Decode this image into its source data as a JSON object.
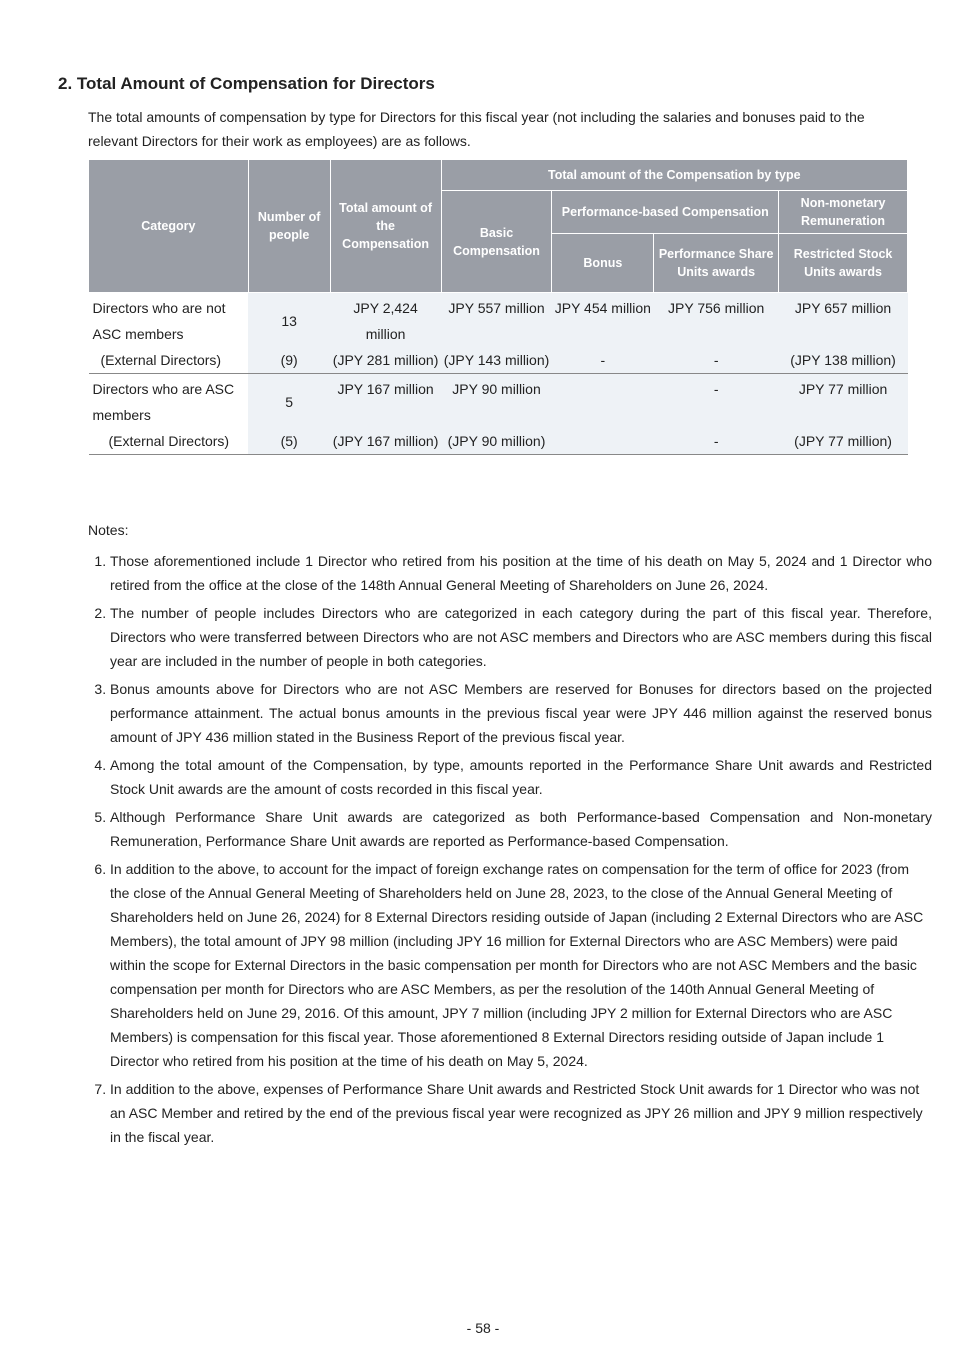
{
  "title": "2. Total Amount of Compensation for Directors",
  "intro": "The total amounts of compensation by type for Directors for this fiscal year (not including the salaries and bonuses paid to the relevant Directors for their work as employees) are as follows.",
  "table": {
    "headers": {
      "category": "Category",
      "people": "Number of people",
      "total": "Total amount of the Compensation",
      "by_type": "Total amount of the Compensation by type",
      "basic": "Basic Compensation",
      "perf": "Performance-based Compensation",
      "nonmon": "Non-monetary Remuneration",
      "bonus": "Bonus",
      "psu": "Performance Share Units awards",
      "rsu": "Restricted Stock Units awards"
    },
    "rows": [
      {
        "cat": "Directors who are not ASC members",
        "people": "13",
        "total": "JPY 2,424 million",
        "basic": "JPY 557 million",
        "bonus": "JPY 454 million",
        "psu": "JPY 756 million",
        "rsu": "JPY 657 million"
      },
      {
        "cat": "(External Directors)",
        "people": "(9)",
        "total": "(JPY 281 million)",
        "basic": "(JPY 143 million)",
        "bonus": "-",
        "psu": "-",
        "rsu": "(JPY 138 million)"
      },
      {
        "cat": "Directors who are ASC members",
        "people": "5",
        "total": "JPY 167 million",
        "basic": "JPY 90 million",
        "bonus": "",
        "psu": "-",
        "rsu": "JPY 77 million"
      },
      {
        "cat": "(External Directors)",
        "people": "(5)",
        "total": "(JPY 167 million)",
        "basic": "(JPY 90 million)",
        "bonus": "",
        "psu": "-",
        "rsu": "(JPY 77 million)"
      }
    ]
  },
  "notes_label": "Notes:",
  "notes": [
    "Those aforementioned include 1 Director who retired from his position at the time of his death on May 5, 2024 and 1 Director who retired from the office at the close of the 148th Annual General Meeting of Shareholders on June 26, 2024.",
    "The number of people includes Directors who are categorized in each category during the part of this fiscal year. Therefore, Directors who were transferred between Directors who are not ASC members and Directors who are ASC members during this fiscal year are included in the number of people in both categories.",
    "Bonus amounts above for Directors who are not ASC Members are reserved for Bonuses for directors based on the projected performance attainment. The actual bonus amounts in the previous fiscal year were JPY 446 million against the reserved bonus amount of JPY 436 million stated in the Business Report of the previous fiscal year.",
    "Among the total amount of the Compensation, by type, amounts reported in the Performance Share Unit awards and Restricted Stock Unit awards are the amount of costs recorded in this fiscal year.",
    "Although Performance Share Unit awards are categorized as both Performance-based Compensation and Non-monetary Remuneration, Performance Share Unit awards are reported as Performance-based Compensation.",
    "In addition to the above, to account for the impact of foreign exchange rates on compensation for the term of office for 2023 (from the close of the Annual General Meeting of Shareholders held on June 28, 2023, to the close of the Annual General Meeting of Shareholders held on June 26, 2024) for 8 External Directors residing outside of Japan (including 2 External Directors who are ASC Members), the total amount of JPY 98 million (including JPY 16 million for External Directors who are ASC Members) were paid within the scope for External Directors in the basic compensation per month for Directors who are not ASC Members and the basic compensation per month for Directors who are ASC Members, as per the resolution of the 140th Annual General Meeting of Shareholders held on June 29, 2016. Of this amount, JPY 7 million (including JPY 2 million for External Directors who are ASC Members) is compensation for this fiscal year. Those aforementioned 8 External Directors residing outside of Japan include 1 Director who retired from his position at the time of his death on May 5, 2024.",
    "In addition to the above, expenses of Performance Share Unit awards and Restricted Stock Unit awards for 1 Director who was not an ASC Member and retired by the end of the previous fiscal year were recognized as JPY 26 million and JPY 9 million respectively in the fiscal year."
  ],
  "page_number": "- 58 -"
}
